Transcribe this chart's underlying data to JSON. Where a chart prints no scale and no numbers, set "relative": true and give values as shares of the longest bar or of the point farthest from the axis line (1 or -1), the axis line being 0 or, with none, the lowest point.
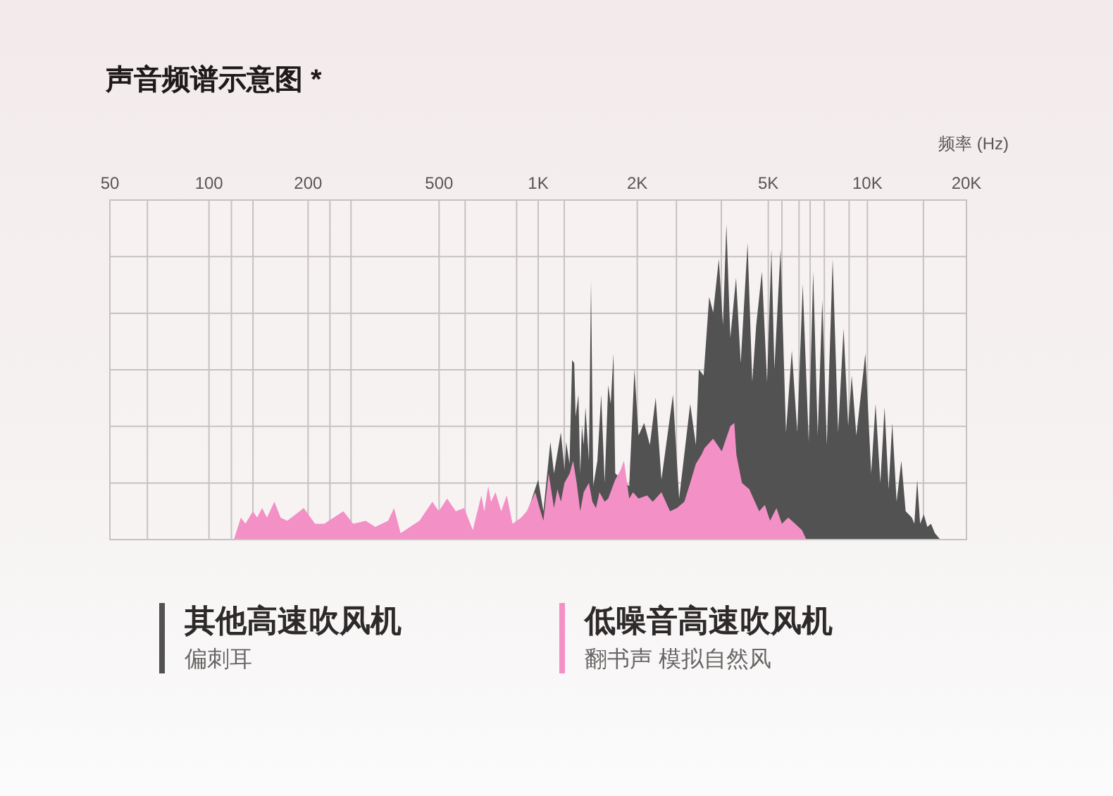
{
  "chart_data": {
    "type": "area",
    "title": "声音频谱示意图 *",
    "xlabel": "频率 (Hz)",
    "log": "x",
    "relative": true,
    "grid": true,
    "legend": "bottom",
    "xlim": [
      50,
      20000
    ],
    "xticks": [
      50,
      {
        "value": 65,
        "label": null
      },
      100,
      {
        "value": 117,
        "label": null
      },
      {
        "value": 136,
        "label": null
      },
      200,
      {
        "value": 233,
        "label": null
      },
      {
        "value": 270,
        "label": null
      },
      500,
      {
        "value": 600,
        "label": null
      },
      {
        "value": 860,
        "label": null
      },
      {
        "value": 1000,
        "label": "1K"
      },
      {
        "value": 1200,
        "label": null
      },
      {
        "value": 2000,
        "label": "2K"
      },
      {
        "value": 2630,
        "label": null
      },
      {
        "value": 3600,
        "label": null
      },
      {
        "value": 5000,
        "label": "5K"
      },
      {
        "value": 5500,
        "label": null
      },
      {
        "value": 6200,
        "label": null
      },
      {
        "value": 6700,
        "label": null
      },
      {
        "value": 7400,
        "label": null
      },
      {
        "value": 8800,
        "label": null
      },
      {
        "value": 10000,
        "label": "10K"
      },
      {
        "value": 14800,
        "label": null
      },
      {
        "value": 20000,
        "label": "20K"
      }
    ],
    "series": [
      {
        "name": "其他高速吹风机",
        "color": "#525252",
        "x": [
          870,
          1000,
          1037,
          1089,
          1117,
          1172,
          1202,
          1216,
          1245,
          1268,
          1287,
          1299,
          1325,
          1342,
          1358,
          1375,
          1392,
          1426,
          1447,
          1470,
          1513,
          1554,
          1592,
          1632,
          1661,
          1693,
          1714,
          1890,
          1961,
          2017,
          2099,
          2184,
          2275,
          2368,
          2567,
          2680,
          2896,
          3013,
          3076,
          3181,
          3307,
          3400,
          3538,
          3642,
          3730,
          3835,
          3991,
          4123,
          4326,
          4470,
          4595,
          4782,
          4958,
          5111,
          5219,
          5447,
          5659,
          5895,
          6124,
          6362,
          6634,
          6846,
          7064,
          7297,
          7529,
          7844,
          8148,
          8466,
          8744,
          8962,
          9258,
          9859,
          10270,
          10590,
          10950,
          11280,
          11600,
          11900,
          12270,
          12680,
          13070,
          13650,
          13890,
          14170,
          14460,
          14840,
          15210,
          15600,
          16040,
          16660
        ],
        "values": [
          0,
          0.19,
          0.09,
          0.31,
          0.21,
          0.34,
          0.22,
          0.31,
          0.24,
          0.57,
          0.56,
          0.39,
          0.46,
          0.21,
          0.36,
          0.3,
          0.42,
          0.25,
          0.82,
          0.17,
          0.25,
          0.46,
          0.18,
          0.49,
          0.43,
          0.59,
          0.21,
          0.17,
          0.54,
          0.33,
          0.37,
          0.3,
          0.45,
          0.19,
          0.46,
          0.13,
          0.43,
          0.3,
          0.54,
          0.52,
          0.77,
          0.72,
          0.89,
          0.68,
          1,
          0.64,
          0.83,
          0.56,
          0.94,
          0.5,
          0.68,
          0.85,
          0.5,
          0.92,
          0.54,
          0.92,
          0.34,
          0.6,
          0.34,
          0.81,
          0.31,
          0.85,
          0.33,
          0.76,
          0.3,
          0.89,
          0.34,
          0.67,
          0.36,
          0.52,
          0.33,
          0.59,
          0.21,
          0.43,
          0.18,
          0.42,
          0.16,
          0.37,
          0.12,
          0.25,
          0.09,
          0.07,
          0.05,
          0.19,
          0.05,
          0.08,
          0.04,
          0.05,
          0.02,
          0
        ]
      },
      {
        "name": "低噪音高速吹风机",
        "color": "#f390c5",
        "x": [
          119,
          125,
          129,
          136,
          140,
          145,
          150,
          158,
          165,
          173,
          194,
          210,
          224,
          256,
          274,
          299,
          320,
          350,
          365,
          382,
          408,
          436,
          477,
          499,
          529,
          562,
          596,
          633,
          672,
          686,
          705,
          719,
          742,
          772,
          803,
          836,
          888,
          923,
          980,
          1010,
          1037,
          1076,
          1117,
          1144,
          1172,
          1202,
          1247,
          1277,
          1309,
          1342,
          1375,
          1426,
          1461,
          1498,
          1535,
          1592,
          1632,
          1714,
          1778,
          1822,
          1890,
          1942,
          2017,
          2142,
          2229,
          2368,
          2515,
          2639,
          2779,
          2896,
          3013,
          3136,
          3200,
          3400,
          3611,
          3835,
          3943,
          4000,
          4158,
          4379,
          4691,
          4881,
          5062,
          5294,
          5500,
          5750,
          6032,
          6326,
          6528
        ],
        "values": [
          0,
          0.07,
          0.05,
          0.09,
          0.07,
          0.1,
          0.07,
          0.12,
          0.07,
          0.06,
          0.1,
          0.05,
          0.05,
          0.09,
          0.05,
          0.06,
          0.04,
          0.06,
          0.1,
          0.02,
          0.04,
          0.06,
          0.12,
          0.09,
          0.13,
          0.09,
          0.1,
          0.03,
          0.14,
          0.09,
          0.17,
          0.12,
          0.15,
          0.09,
          0.14,
          0.05,
          0.07,
          0.09,
          0.15,
          0.1,
          0.06,
          0.21,
          0.1,
          0.16,
          0.12,
          0.18,
          0.21,
          0.25,
          0.18,
          0.09,
          0.15,
          0.18,
          0.12,
          0.1,
          0.15,
          0.12,
          0.13,
          0.19,
          0.22,
          0.25,
          0.13,
          0.15,
          0.13,
          0.14,
          0.12,
          0.15,
          0.09,
          0.1,
          0.12,
          0.18,
          0.24,
          0.27,
          0.29,
          0.32,
          0.28,
          0.36,
          0.37,
          0.27,
          0.18,
          0.16,
          0.09,
          0.11,
          0.06,
          0.1,
          0.05,
          0.07,
          0.05,
          0.03,
          0
        ]
      }
    ],
    "annotations": [
      "偏刺耳",
      "翻书声 模拟自然风"
    ]
  }
}
